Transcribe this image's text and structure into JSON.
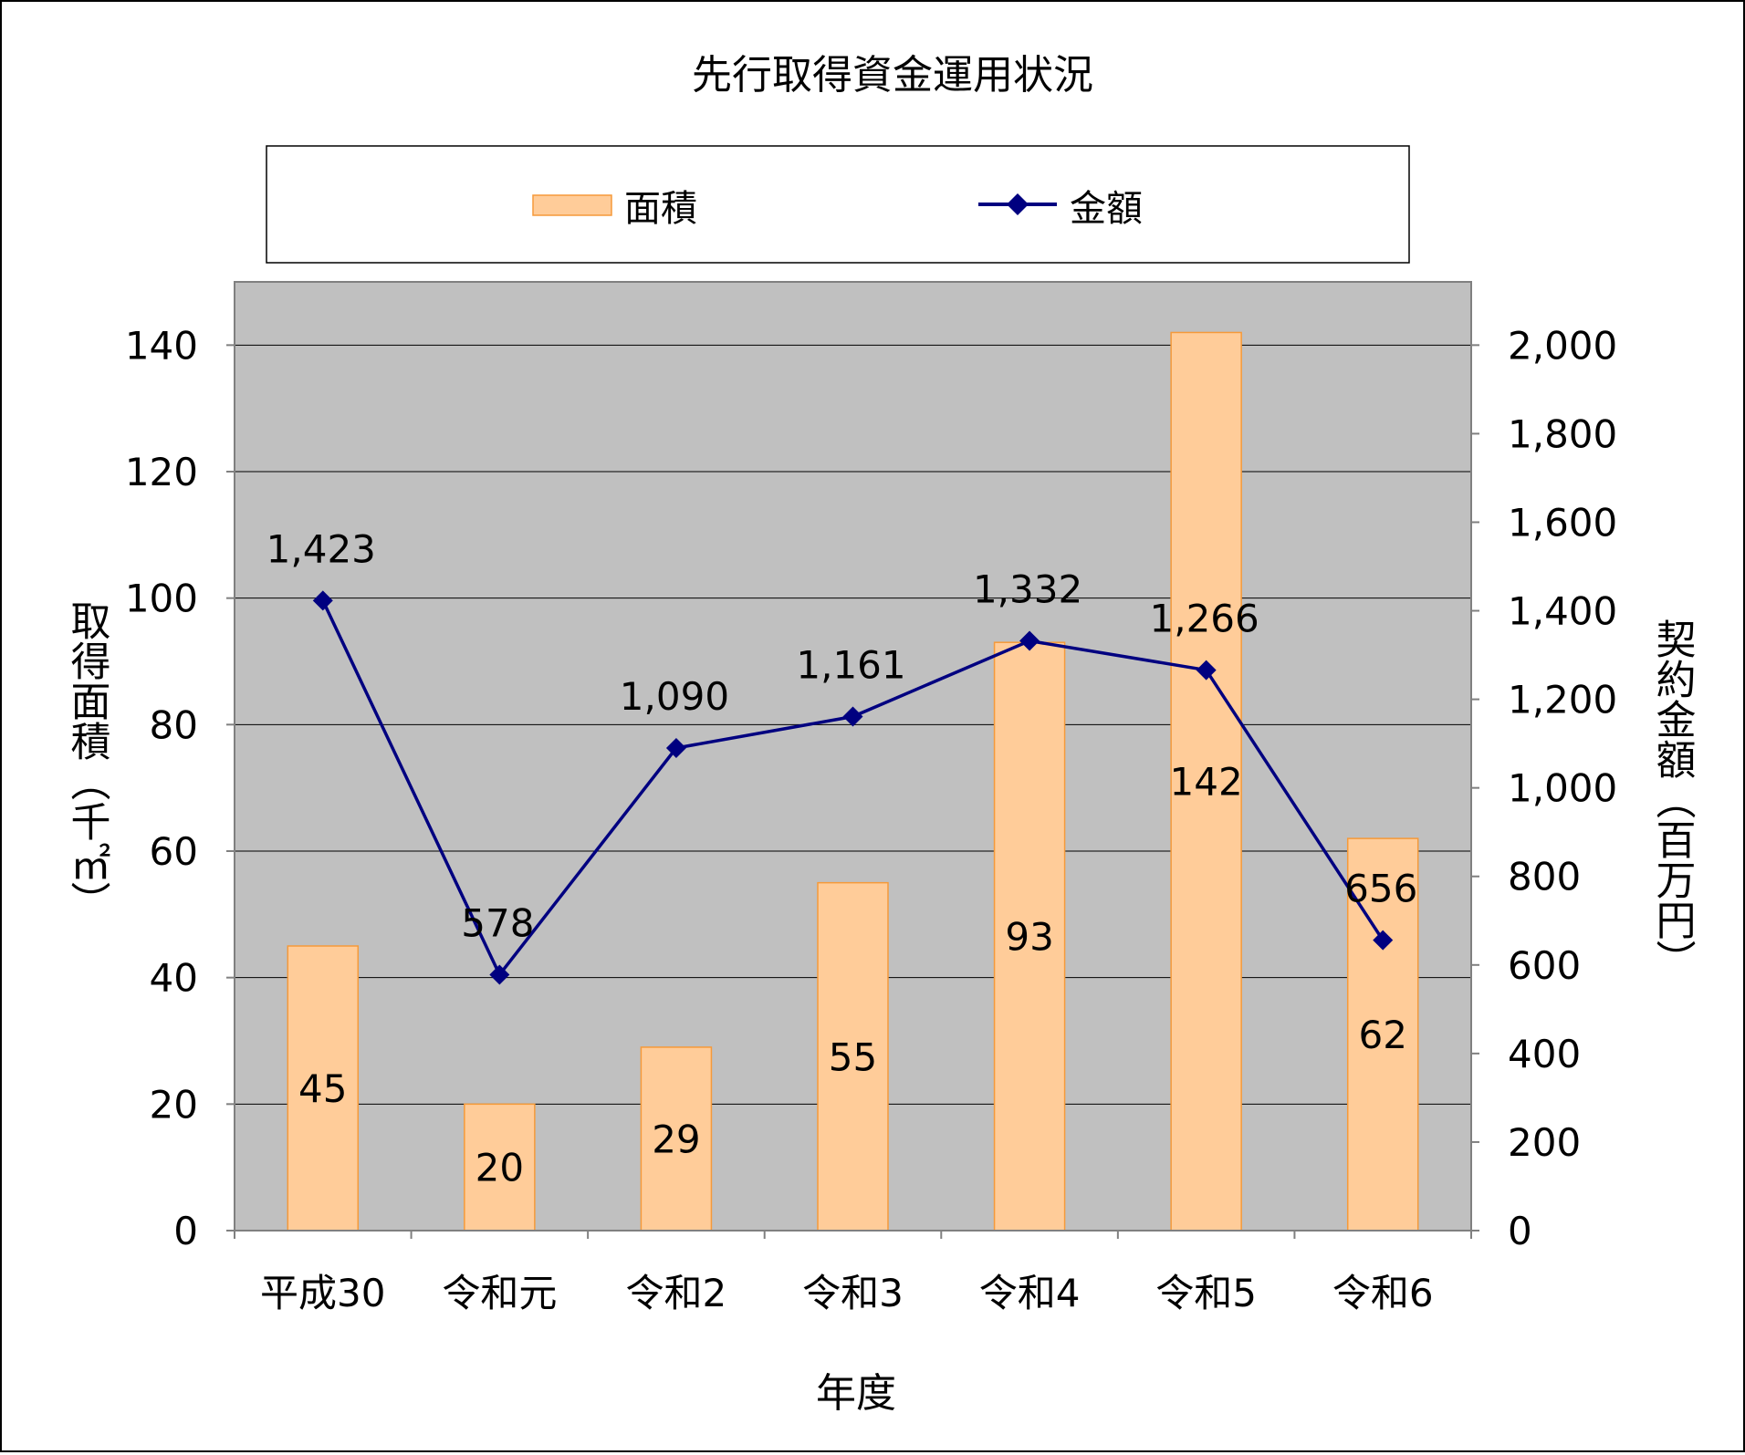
{
  "chart_data": {
    "type": "bar+line",
    "title": "先行取得資金運用状況",
    "xlabel": "年度",
    "ylabel_left": "取得面積（千㎡）",
    "ylabel_right": "契約金額（百万円）",
    "categories": [
      "平成30",
      "令和元",
      "令和2",
      "令和3",
      "令和4",
      "令和5",
      "令和6"
    ],
    "series": [
      {
        "name": "面積",
        "type": "bar",
        "axis": "left",
        "values": [
          45,
          20,
          29,
          55,
          93,
          142,
          62
        ],
        "labels": [
          "45",
          "20",
          "29",
          "55",
          "93",
          "142",
          "62"
        ],
        "color": "#FFCC99",
        "stroke": "#F59A3A"
      },
      {
        "name": "金額",
        "type": "line",
        "axis": "right",
        "values": [
          1423,
          578,
          1090,
          1161,
          1332,
          1266,
          656
        ],
        "labels": [
          "1,423",
          "578",
          "1,090",
          "1,161",
          "1,332",
          "1,266",
          "656"
        ],
        "color": "#000080"
      }
    ],
    "ylim_left": [
      0,
      150
    ],
    "yticks_left": [
      0,
      20,
      40,
      60,
      80,
      100,
      120,
      140
    ],
    "yticks_left_labels": [
      "0",
      "20",
      "40",
      "60",
      "80",
      "100",
      "120",
      "140"
    ],
    "ylim_right": [
      0,
      2142.86
    ],
    "yticks_right": [
      0,
      200,
      400,
      600,
      800,
      1000,
      1200,
      1400,
      1600,
      1800,
      2000
    ],
    "yticks_right_labels": [
      "0",
      "200",
      "400",
      "600",
      "800",
      "1,000",
      "1,200",
      "1,400",
      "1,600",
      "1,800",
      "2,000"
    ],
    "grid": true,
    "legend_position": "top",
    "plot_background": "#C0C0C0"
  }
}
